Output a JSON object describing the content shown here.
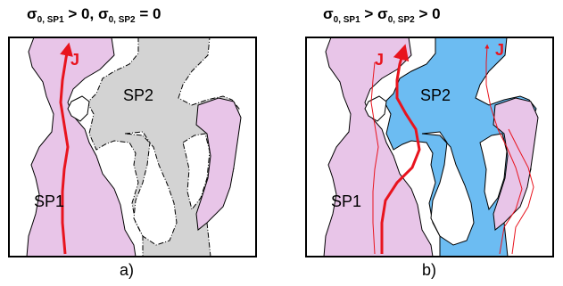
{
  "panel_a": {
    "title": {
      "sigma1": "σ",
      "sub1": "0, SP1",
      "rel1": " > 0, ",
      "sigma2": "σ",
      "sub2": "0, SP2",
      "rel2": " = 0"
    },
    "caption": "a)",
    "labels": {
      "sp1": "SP1",
      "sp2": "SP2",
      "j": "J"
    },
    "sp2_fill": "#d3d3d3"
  },
  "panel_b": {
    "title": {
      "sigma1": "σ",
      "sub1": "0, SP1",
      "rel1": " > ",
      "sigma2": "σ",
      "sub2": "0, SP2",
      "rel2": " > 0"
    },
    "caption": "b)",
    "labels": {
      "sp1": "SP1",
      "sp2": "SP2",
      "j1": "J",
      "j2": "J"
    },
    "sp2_fill": "#6cbcf2"
  },
  "colors": {
    "sp1": "#e8c5e8",
    "current": "#e8141e",
    "outline": "#000000"
  }
}
